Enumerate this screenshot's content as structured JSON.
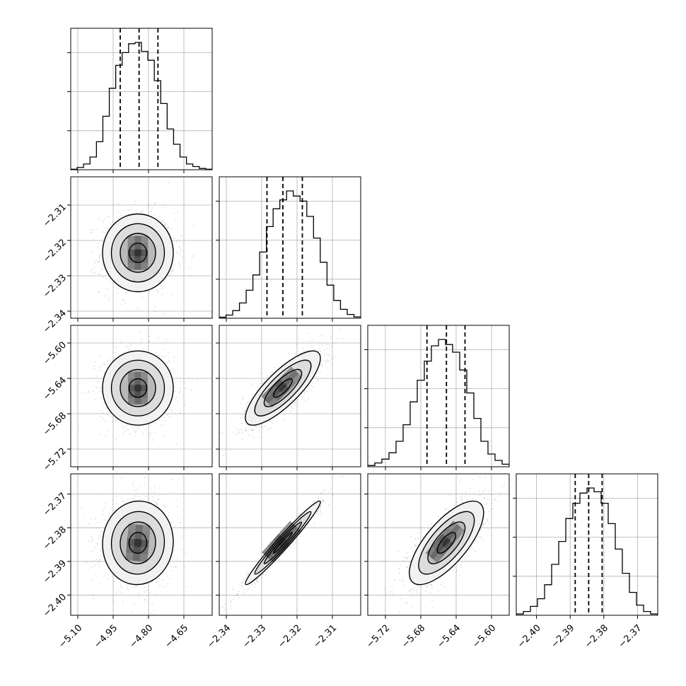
{
  "chart_data": {
    "type": "corner",
    "grid": true,
    "parameters": [
      {
        "index": 0,
        "range": [
          -5.13,
          -4.53
        ],
        "ticks": [
          -5.1,
          -4.95,
          -4.8,
          -4.65
        ],
        "tick_labels": [
          "−5.10",
          "−4.95",
          "−4.80",
          "−4.65"
        ],
        "quantiles": [
          -4.92,
          -4.84,
          -4.76
        ],
        "hist_density": [
          0.004,
          0.018,
          0.045,
          0.1,
          0.22,
          0.42,
          0.64,
          0.82,
          0.92,
          0.99,
          1.0,
          0.93,
          0.86,
          0.7,
          0.52,
          0.32,
          0.2,
          0.1,
          0.045,
          0.025,
          0.01,
          0.004
        ]
      },
      {
        "index": 1,
        "range": [
          -2.342,
          -2.302
        ],
        "ticks": [
          -2.34,
          -2.33,
          -2.32,
          -2.31
        ],
        "tick_labels": [
          "−2.34",
          "−2.33",
          "−2.32",
          "−2.31"
        ],
        "quantiles": [
          -2.3285,
          -2.324,
          -2.3185
        ],
        "hist_density": [
          0.008,
          0.025,
          0.06,
          0.12,
          0.22,
          0.34,
          0.52,
          0.72,
          0.86,
          0.93,
          1.0,
          0.96,
          0.92,
          0.8,
          0.63,
          0.44,
          0.26,
          0.14,
          0.07,
          0.03,
          0.01
        ]
      },
      {
        "index": 2,
        "range": [
          -5.74,
          -5.58
        ],
        "ticks": [
          -5.72,
          -5.68,
          -5.64,
          -5.6
        ],
        "tick_labels": [
          "−5.72",
          "−5.68",
          "−5.64",
          "−5.60"
        ],
        "quantiles": [
          -5.673,
          -5.651,
          -5.63
        ],
        "hist_density": [
          0.01,
          0.03,
          0.06,
          0.11,
          0.2,
          0.33,
          0.51,
          0.68,
          0.83,
          0.95,
          1.0,
          0.96,
          0.9,
          0.76,
          0.58,
          0.38,
          0.2,
          0.1,
          0.05,
          0.02
        ]
      },
      {
        "index": 3,
        "range": [
          -2.406,
          -2.364
        ],
        "ticks": [
          -2.4,
          -2.39,
          -2.38,
          -2.37
        ],
        "tick_labels": [
          "−2.40",
          "−2.39",
          "−2.38",
          "−2.37"
        ],
        "quantiles": [
          -2.3885,
          -2.3845,
          -2.3805
        ],
        "hist_density": [
          0.01,
          0.03,
          0.07,
          0.13,
          0.24,
          0.4,
          0.58,
          0.76,
          0.88,
          0.96,
          1.0,
          0.97,
          0.88,
          0.72,
          0.52,
          0.33,
          0.18,
          0.08,
          0.03,
          0.01
        ]
      }
    ],
    "joint": [
      {
        "row": 1,
        "col": 0,
        "mean": [
          -4.845,
          -2.3235
        ],
        "std": [
          0.075,
          0.0055
        ],
        "corr": 0.0
      },
      {
        "row": 2,
        "col": 0,
        "mean": [
          -4.845,
          -5.651
        ],
        "std": [
          0.075,
          0.021
        ],
        "corr": 0.0
      },
      {
        "row": 2,
        "col": 1,
        "mean": [
          -2.324,
          -5.651
        ],
        "std": [
          0.0053,
          0.021
        ],
        "corr": 0.8
      },
      {
        "row": 3,
        "col": 0,
        "mean": [
          -4.845,
          -2.3845
        ],
        "std": [
          0.075,
          0.0062
        ],
        "corr": 0.03
      },
      {
        "row": 3,
        "col": 1,
        "mean": [
          -2.324,
          -2.3845
        ],
        "std": [
          0.0053,
          0.0062
        ],
        "corr": 0.975
      },
      {
        "row": 3,
        "col": 2,
        "mean": [
          -5.651,
          -2.3845
        ],
        "std": [
          0.021,
          0.0062
        ],
        "corr": 0.72
      }
    ]
  }
}
